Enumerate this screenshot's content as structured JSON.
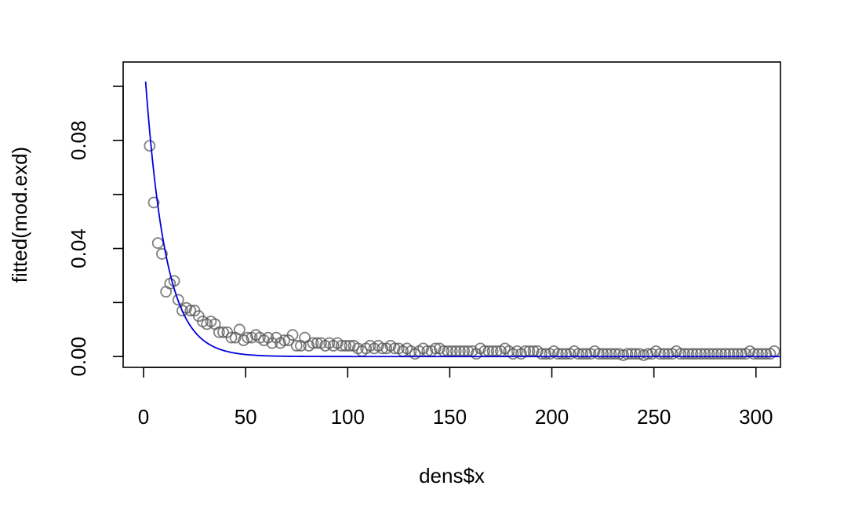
{
  "chart_data": {
    "type": "scatter",
    "title": "",
    "xlabel": "dens$x",
    "ylabel": "fitted(mod.exd)",
    "xlim": [
      -10,
      312
    ],
    "ylim": [
      -0.004,
      0.109
    ],
    "x_ticks": [
      {
        "value": 0,
        "label": "0"
      },
      {
        "value": 50,
        "label": "50"
      },
      {
        "value": 100,
        "label": "100"
      },
      {
        "value": 150,
        "label": "150"
      },
      {
        "value": 200,
        "label": "200"
      },
      {
        "value": 250,
        "label": "250"
      },
      {
        "value": 300,
        "label": "300"
      }
    ],
    "y_ticks": [
      {
        "value": 0.0,
        "label": "0.00"
      },
      {
        "value": 0.02,
        "label": ""
      },
      {
        "value": 0.04,
        "label": "0.04"
      },
      {
        "value": 0.06,
        "label": ""
      },
      {
        "value": 0.08,
        "label": "0.08"
      },
      {
        "value": 0.1,
        "label": ""
      }
    ],
    "grid": false,
    "legend": "none",
    "colors": {
      "points": "#555555",
      "curve": "#0000dd",
      "axis": "#000000"
    },
    "series": [
      {
        "kind": "points",
        "points": [
          [
            3,
            0.078
          ],
          [
            5,
            0.057
          ],
          [
            7,
            0.042
          ],
          [
            9,
            0.038
          ],
          [
            11,
            0.024
          ],
          [
            13,
            0.027
          ],
          [
            15,
            0.028
          ],
          [
            17,
            0.021
          ],
          [
            19,
            0.017
          ],
          [
            21,
            0.018
          ],
          [
            23,
            0.017
          ],
          [
            25,
            0.017
          ],
          [
            27,
            0.015
          ],
          [
            29,
            0.013
          ],
          [
            31,
            0.012
          ],
          [
            33,
            0.013
          ],
          [
            35,
            0.012
          ],
          [
            37,
            0.009
          ],
          [
            39,
            0.009
          ],
          [
            41,
            0.009
          ],
          [
            43,
            0.007
          ],
          [
            45,
            0.007
          ],
          [
            47,
            0.01
          ],
          [
            49,
            0.006
          ],
          [
            51,
            0.007
          ],
          [
            53,
            0.007
          ],
          [
            55,
            0.008
          ],
          [
            57,
            0.007
          ],
          [
            59,
            0.006
          ],
          [
            61,
            0.007
          ],
          [
            63,
            0.005
          ],
          [
            65,
            0.007
          ],
          [
            67,
            0.005
          ],
          [
            69,
            0.006
          ],
          [
            71,
            0.006
          ],
          [
            73,
            0.008
          ],
          [
            75,
            0.004
          ],
          [
            77,
            0.004
          ],
          [
            79,
            0.007
          ],
          [
            81,
            0.004
          ],
          [
            83,
            0.005
          ],
          [
            85,
            0.005
          ],
          [
            87,
            0.005
          ],
          [
            89,
            0.004
          ],
          [
            91,
            0.005
          ],
          [
            93,
            0.004
          ],
          [
            95,
            0.005
          ],
          [
            97,
            0.004
          ],
          [
            99,
            0.004
          ],
          [
            101,
            0.004
          ],
          [
            103,
            0.004
          ],
          [
            105,
            0.003
          ],
          [
            107,
            0.002
          ],
          [
            109,
            0.003
          ],
          [
            111,
            0.004
          ],
          [
            113,
            0.003
          ],
          [
            115,
            0.004
          ],
          [
            117,
            0.003
          ],
          [
            119,
            0.003
          ],
          [
            121,
            0.004
          ],
          [
            123,
            0.003
          ],
          [
            125,
            0.003
          ],
          [
            127,
            0.002
          ],
          [
            129,
            0.003
          ],
          [
            131,
            0.002
          ],
          [
            133,
            0.001
          ],
          [
            135,
            0.002
          ],
          [
            137,
            0.003
          ],
          [
            139,
            0.002
          ],
          [
            141,
            0.002
          ],
          [
            143,
            0.003
          ],
          [
            145,
            0.003
          ],
          [
            147,
            0.002
          ],
          [
            149,
            0.002
          ],
          [
            151,
            0.002
          ],
          [
            153,
            0.002
          ],
          [
            155,
            0.002
          ],
          [
            157,
            0.002
          ],
          [
            159,
            0.002
          ],
          [
            161,
            0.002
          ],
          [
            163,
            0.001
          ],
          [
            165,
            0.003
          ],
          [
            167,
            0.002
          ],
          [
            169,
            0.002
          ],
          [
            171,
            0.002
          ],
          [
            173,
            0.002
          ],
          [
            175,
            0.002
          ],
          [
            177,
            0.003
          ],
          [
            179,
            0.002
          ],
          [
            181,
            0.001
          ],
          [
            183,
            0.002
          ],
          [
            185,
            0.001
          ],
          [
            187,
            0.002
          ],
          [
            189,
            0.002
          ],
          [
            191,
            0.002
          ],
          [
            193,
            0.002
          ],
          [
            195,
            0.001
          ],
          [
            197,
            0.001
          ],
          [
            199,
            0.001
          ],
          [
            201,
            0.002
          ],
          [
            203,
            0.001
          ],
          [
            205,
            0.001
          ],
          [
            207,
            0.001
          ],
          [
            209,
            0.001
          ],
          [
            211,
            0.002
          ],
          [
            213,
            0.001
          ],
          [
            215,
            0.001
          ],
          [
            217,
            0.001
          ],
          [
            219,
            0.001
          ],
          [
            221,
            0.002
          ],
          [
            223,
            0.001
          ],
          [
            225,
            0.001
          ],
          [
            227,
            0.001
          ],
          [
            229,
            0.001
          ],
          [
            231,
            0.001
          ],
          [
            233,
            0.001
          ],
          [
            235,
            0.0005
          ],
          [
            237,
            0.001
          ],
          [
            239,
            0.001
          ],
          [
            241,
            0.001
          ],
          [
            243,
            0.001
          ],
          [
            245,
            0.0005
          ],
          [
            247,
            0.001
          ],
          [
            249,
            0.001
          ],
          [
            251,
            0.002
          ],
          [
            253,
            0.001
          ],
          [
            255,
            0.001
          ],
          [
            257,
            0.001
          ],
          [
            259,
            0.001
          ],
          [
            261,
            0.002
          ],
          [
            263,
            0.001
          ],
          [
            265,
            0.001
          ],
          [
            267,
            0.001
          ],
          [
            269,
            0.001
          ],
          [
            271,
            0.001
          ],
          [
            273,
            0.001
          ],
          [
            275,
            0.001
          ],
          [
            277,
            0.001
          ],
          [
            279,
            0.001
          ],
          [
            281,
            0.001
          ],
          [
            283,
            0.001
          ],
          [
            285,
            0.001
          ],
          [
            287,
            0.001
          ],
          [
            289,
            0.001
          ],
          [
            291,
            0.001
          ],
          [
            293,
            0.001
          ],
          [
            295,
            0.001
          ],
          [
            297,
            0.002
          ],
          [
            299,
            0.001
          ],
          [
            301,
            0.001
          ],
          [
            303,
            0.001
          ],
          [
            305,
            0.001
          ],
          [
            307,
            0.001
          ],
          [
            309,
            0.002
          ]
        ]
      },
      {
        "kind": "curve",
        "function": "exponential",
        "amplitude": 0.1125,
        "rate": 0.1,
        "x_range": [
          1,
          312
        ]
      }
    ]
  }
}
